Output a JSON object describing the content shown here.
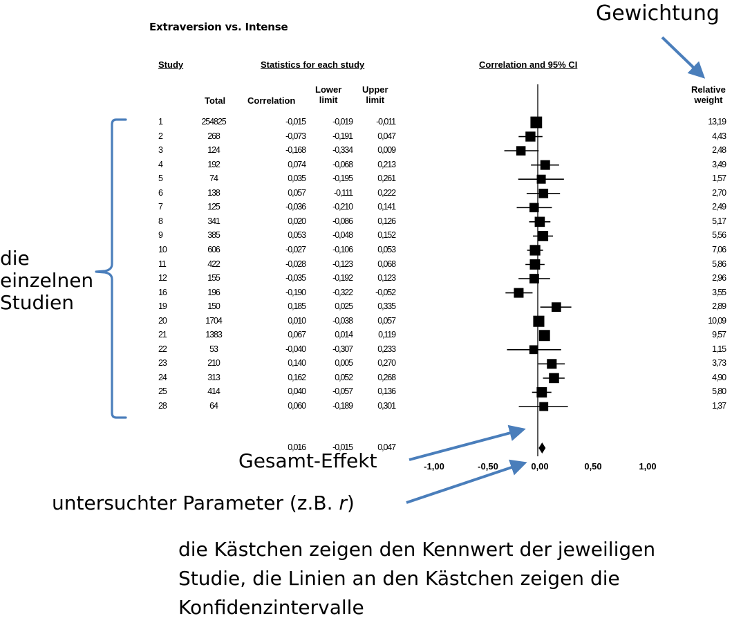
{
  "annotations": {
    "weighting": "Gewichtung",
    "single_studies": [
      "die",
      "einzelnen",
      "Studien"
    ],
    "overall_effect": "Gesamt-Effekt",
    "parameter_prefix": "untersuchter Parameter (z.B. ",
    "parameter_symbol": "r",
    "parameter_suffix": ")",
    "explanation": [
      "die Kästchen zeigen den Kennwert der jeweiligen",
      "Studie, die Linien an den Kästchen zeigen die",
      "Konfidenzintervalle"
    ],
    "accent_color": "#4a7ebb"
  },
  "table": {
    "section_headers": {
      "study": "Study",
      "statistics": "Statistics for each study",
      "plot": "Correlation and 95% CI"
    },
    "columns": {
      "total": "Total",
      "correlation": "Correlation",
      "lower": [
        "Lower",
        "limit"
      ],
      "upper": [
        "Upper",
        "limit"
      ],
      "weight": [
        "Relative",
        "weight"
      ]
    },
    "rows": [
      {
        "study": "1",
        "total": "254825",
        "r": "-0,015",
        "lo": "-0,019",
        "hi": "-0,011",
        "w": "13,19"
      },
      {
        "study": "2",
        "total": "268",
        "r": "-0,073",
        "lo": "-0,191",
        "hi": "0,047",
        "w": "4,43"
      },
      {
        "study": "3",
        "total": "124",
        "r": "-0,168",
        "lo": "-0,334",
        "hi": "0,009",
        "w": "2,48"
      },
      {
        "study": "4",
        "total": "192",
        "r": "0,074",
        "lo": "-0,068",
        "hi": "0,213",
        "w": "3,49"
      },
      {
        "study": "5",
        "total": "74",
        "r": "0,035",
        "lo": "-0,195",
        "hi": "0,261",
        "w": "1,57"
      },
      {
        "study": "6",
        "total": "138",
        "r": "0,057",
        "lo": "-0,111",
        "hi": "0,222",
        "w": "2,70"
      },
      {
        "study": "7",
        "total": "125",
        "r": "-0,036",
        "lo": "-0,210",
        "hi": "0,141",
        "w": "2,49"
      },
      {
        "study": "8",
        "total": "341",
        "r": "0,020",
        "lo": "-0,086",
        "hi": "0,126",
        "w": "5,17"
      },
      {
        "study": "9",
        "total": "385",
        "r": "0,053",
        "lo": "-0,048",
        "hi": "0,152",
        "w": "5,56"
      },
      {
        "study": "10",
        "total": "606",
        "r": "-0,027",
        "lo": "-0,106",
        "hi": "0,053",
        "w": "7,06"
      },
      {
        "study": "11",
        "total": "422",
        "r": "-0,028",
        "lo": "-0,123",
        "hi": "0,068",
        "w": "5,86"
      },
      {
        "study": "12",
        "total": "155",
        "r": "-0,035",
        "lo": "-0,192",
        "hi": "0,123",
        "w": "2,96"
      },
      {
        "study": "16",
        "total": "196",
        "r": "-0,190",
        "lo": "-0,322",
        "hi": "-0,052",
        "w": "3,55"
      },
      {
        "study": "19",
        "total": "150",
        "r": "0,185",
        "lo": "0,025",
        "hi": "0,335",
        "w": "2,89"
      },
      {
        "study": "20",
        "total": "1704",
        "r": "0,010",
        "lo": "-0,038",
        "hi": "0,057",
        "w": "10,09"
      },
      {
        "study": "21",
        "total": "1383",
        "r": "0,067",
        "lo": "0,014",
        "hi": "0,119",
        "w": "9,57"
      },
      {
        "study": "22",
        "total": "53",
        "r": "-0,040",
        "lo": "-0,307",
        "hi": "0,233",
        "w": "1,15"
      },
      {
        "study": "23",
        "total": "210",
        "r": "0,140",
        "lo": "0,005",
        "hi": "0,270",
        "w": "3,73"
      },
      {
        "study": "24",
        "total": "313",
        "r": "0,162",
        "lo": "0,052",
        "hi": "0,268",
        "w": "4,90"
      },
      {
        "study": "25",
        "total": "414",
        "r": "0,040",
        "lo": "-0,057",
        "hi": "0,136",
        "w": "5,80"
      },
      {
        "study": "28",
        "total": "64",
        "r": "0,060",
        "lo": "-0,189",
        "hi": "0,301",
        "w": "1,37"
      }
    ],
    "summary": {
      "r": "0,016",
      "lo": "-0,015",
      "hi": "0,047"
    }
  },
  "axis": {
    "ticks": [
      "-1,00",
      "-0,50",
      "0,00",
      "0,50",
      "1,00"
    ]
  },
  "chart_data": {
    "type": "forest",
    "title": "Extraversion vs. Intense",
    "xlabel": "Correlation and 95% CI",
    "xlim": [
      -1.0,
      1.0
    ],
    "x_ticks": [
      -1.0,
      -0.5,
      0.0,
      0.5,
      1.0
    ],
    "x_tick_labels": [
      "-1,00",
      "-0,50",
      "0,00",
      "0,50",
      "1,00"
    ],
    "categories": [
      "1",
      "2",
      "3",
      "4",
      "5",
      "6",
      "7",
      "8",
      "9",
      "10",
      "11",
      "12",
      "16",
      "19",
      "20",
      "21",
      "22",
      "23",
      "24",
      "25",
      "28"
    ],
    "series": [
      {
        "name": "Total",
        "values": [
          254825,
          268,
          124,
          192,
          74,
          138,
          125,
          341,
          385,
          606,
          422,
          155,
          196,
          150,
          1704,
          1383,
          53,
          210,
          313,
          414,
          64
        ]
      },
      {
        "name": "Correlation",
        "values": [
          -0.015,
          -0.073,
          -0.168,
          0.074,
          0.035,
          0.057,
          -0.036,
          0.02,
          0.053,
          -0.027,
          -0.028,
          -0.035,
          -0.19,
          0.185,
          0.01,
          0.067,
          -0.04,
          0.14,
          0.162,
          0.04,
          0.06
        ]
      },
      {
        "name": "Lower limit",
        "values": [
          -0.019,
          -0.191,
          -0.334,
          -0.068,
          -0.195,
          -0.111,
          -0.21,
          -0.086,
          -0.048,
          -0.106,
          -0.123,
          -0.192,
          -0.322,
          0.025,
          -0.038,
          0.014,
          -0.307,
          0.005,
          0.052,
          -0.057,
          -0.189
        ]
      },
      {
        "name": "Upper limit",
        "values": [
          -0.011,
          0.047,
          0.009,
          0.213,
          0.261,
          0.222,
          0.141,
          0.126,
          0.152,
          0.053,
          0.068,
          0.123,
          -0.052,
          0.335,
          0.057,
          0.119,
          0.233,
          0.27,
          0.268,
          0.136,
          0.301
        ]
      },
      {
        "name": "Relative weight",
        "values": [
          13.19,
          4.43,
          2.48,
          3.49,
          1.57,
          2.7,
          2.49,
          5.17,
          5.56,
          7.06,
          5.86,
          2.96,
          3.55,
          2.89,
          10.09,
          9.57,
          1.15,
          3.73,
          4.9,
          5.8,
          1.37
        ]
      }
    ],
    "summary": {
      "correlation": 0.016,
      "lower": -0.015,
      "upper": 0.047
    },
    "annotations": [
      "Gewichtung",
      "die einzelnen Studien",
      "Gesamt-Effekt",
      "untersuchter Parameter (z.B. r)"
    ]
  }
}
